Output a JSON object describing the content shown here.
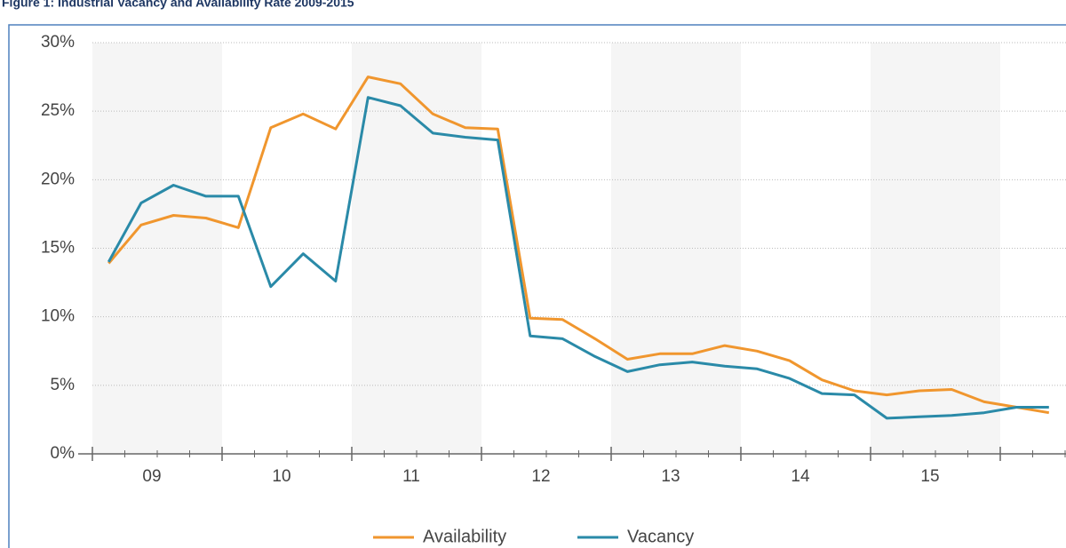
{
  "chart_data": {
    "type": "line",
    "title": "Figure 1: Industrial Vacancy and Availability Rate 2009-2015",
    "categories": [
      null,
      null,
      null,
      null,
      null,
      null,
      null,
      null,
      null,
      null,
      null,
      null,
      null,
      null,
      null,
      null,
      null,
      null,
      null,
      null,
      null,
      null,
      null,
      null,
      null,
      null,
      null,
      null,
      null,
      null
    ],
    "x_groups": [
      "09",
      "10",
      "11",
      "12",
      "13",
      "14",
      "15"
    ],
    "series": [
      {
        "name": "Availability",
        "color": "#f0962e",
        "values": [
          13.9,
          16.7,
          17.4,
          17.2,
          16.5,
          23.8,
          24.8,
          23.7,
          27.5,
          27.0,
          24.8,
          23.8,
          23.7,
          9.9,
          9.8,
          8.4,
          6.9,
          7.3,
          7.3,
          7.9,
          7.5,
          6.8,
          5.4,
          4.6,
          4.3,
          4.6,
          4.7,
          3.8,
          3.4,
          3.0
        ]
      },
      {
        "name": "Vacancy",
        "color": "#2a8aa8",
        "values": [
          14.0,
          18.3,
          19.6,
          18.8,
          18.8,
          12.2,
          14.6,
          12.6,
          26.0,
          25.4,
          23.4,
          23.1,
          22.9,
          8.6,
          8.4,
          7.1,
          6.0,
          6.5,
          6.7,
          6.4,
          6.2,
          5.5,
          4.4,
          4.3,
          2.6,
          2.7,
          2.8,
          3.0,
          3.4,
          3.4
        ]
      }
    ],
    "ylim": [
      0,
      30
    ],
    "yticks": [
      {
        "value": 0,
        "label": "0%"
      },
      {
        "value": 5,
        "label": "5%"
      },
      {
        "value": 10,
        "label": "10%"
      },
      {
        "value": 15,
        "label": "15%"
      },
      {
        "value": 20,
        "label": "20%"
      },
      {
        "value": 25,
        "label": "25%"
      },
      {
        "value": 30,
        "label": "30%"
      }
    ],
    "grid": true,
    "legend": "bottom"
  }
}
